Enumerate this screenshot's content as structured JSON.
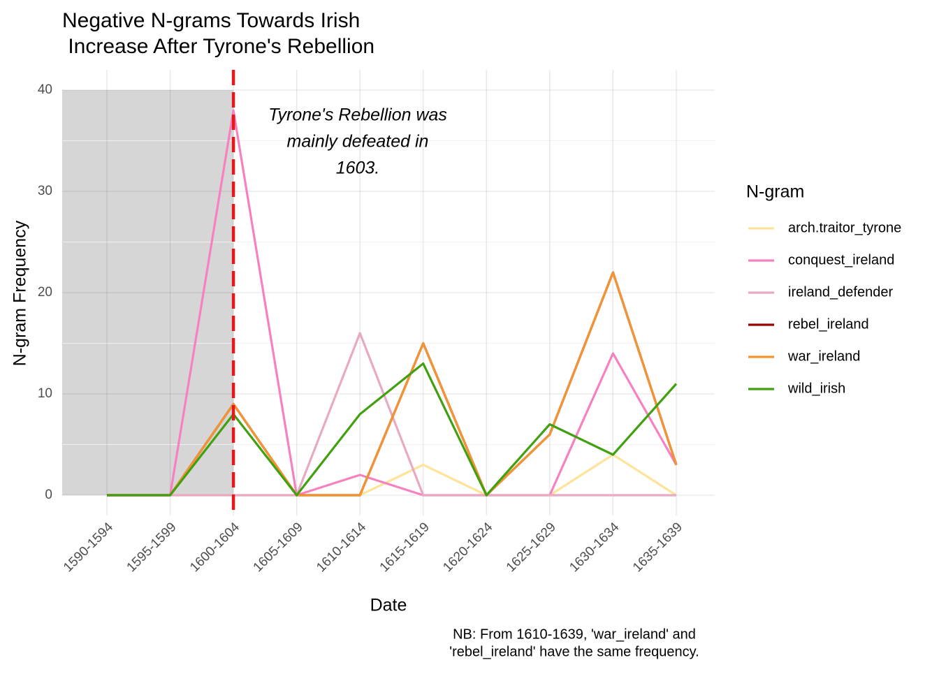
{
  "chart_data": {
    "type": "line",
    "title": [
      "Negative N-grams Towards Irish",
      " Increase After Tyrone's Rebellion"
    ],
    "x_label": "Date",
    "y_label": "N-gram Frequency",
    "annotation": [
      "Tyrone's Rebellion was",
      "mainly defeated in",
      "1603."
    ],
    "caption": [
      "NB: From 1610-1639, 'war_ireland' and",
      "'rebel_ireland' have the same frequency."
    ],
    "legend_title": "N-gram",
    "legend": "right",
    "categories": [
      "1590-1594",
      "1595-1599",
      "1600-1604",
      "1605-1609",
      "1610-1614",
      "1615-1619",
      "1620-1624",
      "1625-1629",
      "1630-1634",
      "1635-1639"
    ],
    "series": [
      {
        "name": "arch.traitor_tyrone",
        "color": "#fde49a",
        "values": [
          0,
          0,
          0,
          0,
          0,
          3,
          0,
          0,
          4,
          0
        ]
      },
      {
        "name": "conquest_ireland",
        "color": "#f781bf",
        "values": [
          0,
          0,
          38,
          0,
          2,
          0,
          0,
          0,
          14,
          3
        ]
      },
      {
        "name": "ireland_defender",
        "color": "#e8a9c3",
        "values": [
          0,
          0,
          0,
          0,
          16,
          0,
          0,
          0,
          0,
          0
        ]
      },
      {
        "name": "rebel_ireland",
        "color": "#990000",
        "values": [
          0,
          0,
          9,
          0,
          0,
          15,
          0,
          6,
          22,
          3
        ]
      },
      {
        "name": "war_ireland",
        "color": "#f39433",
        "values": [
          0,
          0,
          9,
          0,
          0,
          15,
          0,
          6,
          22,
          3
        ]
      },
      {
        "name": "wild_irish",
        "color": "#41a00f",
        "values": [
          0,
          0,
          8,
          0,
          8,
          13,
          0,
          7,
          4,
          11
        ]
      }
    ],
    "shade": {
      "to": "1600-1604",
      "ymin": 0,
      "ymax": 40,
      "color": "#d6d6d6"
    },
    "vline": {
      "at": "1600-1604",
      "color": "#e31a1c"
    },
    "ylim": [
      -2,
      42
    ],
    "yticks": [
      0,
      10,
      20,
      30,
      40
    ],
    "grid": true
  }
}
